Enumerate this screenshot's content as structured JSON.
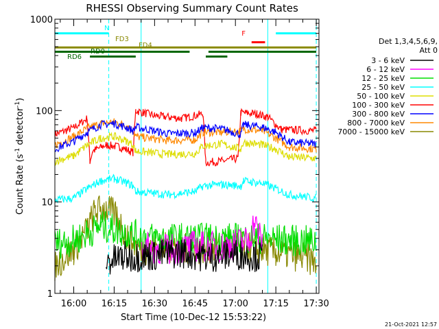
{
  "chart_data": {
    "type": "line",
    "title": "RHESSI Observing Summary Count Rates",
    "xlabel": "Start Time (10-Dec-12 15:53:22)",
    "ylabel": "Count Rate (s",
    "ylabel_sup": "-1",
    "ylabel_mid": " detector",
    "ylabel_end": ")",
    "yscale": "log",
    "ylim": [
      1,
      1000
    ],
    "xlim": [
      "15:53",
      "17:31"
    ],
    "x_ticks": [
      "16:00",
      "16:15",
      "16:30",
      "16:45",
      "17:00",
      "17:15",
      "17:30"
    ],
    "y_ticks": [
      "1",
      "10",
      "100",
      "1000"
    ],
    "footer_date": "21-Oct-2021 12:57",
    "legend": {
      "header": [
        "Det 1,3,4,5,6,9,",
        "Att 0"
      ],
      "placement": "right",
      "entries": [
        {
          "label": "3 - 6 keV",
          "color": "#000000"
        },
        {
          "label": "6 - 12 keV",
          "color": "#ff00ff"
        },
        {
          "label": "12 - 25 keV",
          "color": "#00dd00"
        },
        {
          "label": "25 - 50 keV",
          "color": "#00ffff"
        },
        {
          "label": "50 - 100 keV",
          "color": "#dddd00"
        },
        {
          "label": "100 - 300 keV",
          "color": "#ff0000"
        },
        {
          "label": "300 - 800 keV",
          "color": "#0000ff"
        },
        {
          "label": "800 - 7000 keV",
          "color": "#ff8800"
        },
        {
          "label": "7000 - 15000 keV",
          "color": "#888800"
        }
      ]
    },
    "series": [
      {
        "name": "100 - 300 keV",
        "color": "#ff0000",
        "points": [
          [
            "15:53",
            55
          ],
          [
            "16:00",
            65
          ],
          [
            "16:05",
            82
          ],
          [
            "16:06",
            28
          ],
          [
            "16:07",
            36
          ],
          [
            "16:12",
            42
          ],
          [
            "16:17",
            40
          ],
          [
            "16:22",
            35
          ],
          [
            "16:23",
            100
          ],
          [
            "16:30",
            88
          ],
          [
            "16:40",
            82
          ],
          [
            "16:48",
            92
          ],
          [
            "16:49",
            27
          ],
          [
            "16:55",
            28
          ],
          [
            "17:01",
            30
          ],
          [
            "17:02",
            95
          ],
          [
            "17:08",
            92
          ],
          [
            "17:12",
            85
          ],
          [
            "17:17",
            62
          ],
          [
            "17:30",
            60
          ]
        ]
      },
      {
        "name": "800 - 7000 keV",
        "color": "#ff8800",
        "points": [
          [
            "15:53",
            42
          ],
          [
            "16:00",
            52
          ],
          [
            "16:05",
            64
          ],
          [
            "16:10",
            72
          ],
          [
            "16:15",
            75
          ],
          [
            "16:20",
            68
          ],
          [
            "16:22",
            60
          ],
          [
            "16:23",
            52
          ],
          [
            "16:35",
            47
          ],
          [
            "16:45",
            48
          ],
          [
            "16:48",
            58
          ],
          [
            "16:55",
            58
          ],
          [
            "17:02",
            60
          ],
          [
            "17:03",
            63
          ],
          [
            "17:10",
            60
          ],
          [
            "17:15",
            50
          ],
          [
            "17:20",
            40
          ],
          [
            "17:30",
            38
          ]
        ]
      },
      {
        "name": "300 - 800 keV",
        "color": "#0000ff",
        "points": [
          [
            "15:53",
            38
          ],
          [
            "16:00",
            46
          ],
          [
            "16:05",
            58
          ],
          [
            "16:10",
            70
          ],
          [
            "16:15",
            72
          ],
          [
            "16:20",
            65
          ],
          [
            "16:22",
            60
          ],
          [
            "16:23",
            66
          ],
          [
            "16:35",
            56
          ],
          [
            "16:45",
            57
          ],
          [
            "16:48",
            65
          ],
          [
            "16:55",
            63
          ],
          [
            "17:02",
            55
          ],
          [
            "17:03",
            70
          ],
          [
            "17:10",
            66
          ],
          [
            "17:15",
            58
          ],
          [
            "17:20",
            45
          ],
          [
            "17:30",
            43
          ]
        ]
      },
      {
        "name": "50 - 100 keV",
        "color": "#dddd00",
        "points": [
          [
            "15:53",
            28
          ],
          [
            "16:00",
            32
          ],
          [
            "16:05",
            42
          ],
          [
            "16:10",
            50
          ],
          [
            "16:15",
            52
          ],
          [
            "16:20",
            46
          ],
          [
            "16:22",
            42
          ],
          [
            "16:23",
            36
          ],
          [
            "16:35",
            33
          ],
          [
            "16:45",
            34
          ],
          [
            "16:48",
            41
          ],
          [
            "16:55",
            43
          ],
          [
            "17:02",
            38
          ],
          [
            "17:03",
            45
          ],
          [
            "17:10",
            42
          ],
          [
            "17:15",
            38
          ],
          [
            "17:20",
            31
          ],
          [
            "17:30",
            30
          ]
        ]
      },
      {
        "name": "25 - 50 keV",
        "color": "#00ffff",
        "points": [
          [
            "15:53",
            10.5
          ],
          [
            "16:00",
            11
          ],
          [
            "16:05",
            14
          ],
          [
            "16:10",
            17
          ],
          [
            "16:15",
            18
          ],
          [
            "16:20",
            16
          ],
          [
            "16:22",
            15
          ],
          [
            "16:23",
            13
          ],
          [
            "16:35",
            12
          ],
          [
            "16:45",
            13
          ],
          [
            "16:48",
            15
          ],
          [
            "16:55",
            15.5
          ],
          [
            "17:02",
            15
          ],
          [
            "17:03",
            17
          ],
          [
            "17:10",
            16
          ],
          [
            "17:15",
            14
          ],
          [
            "17:20",
            12
          ],
          [
            "17:30",
            11
          ]
        ]
      },
      {
        "name": "7000 - 15000 keV",
        "color": "#888800",
        "points": [
          [
            "15:53",
            2
          ],
          [
            "16:00",
            3
          ],
          [
            "16:05",
            5
          ],
          [
            "16:08",
            8
          ],
          [
            "16:12",
            8.5
          ],
          [
            "16:16",
            7
          ],
          [
            "16:20",
            4
          ],
          [
            "16:25",
            3
          ],
          [
            "16:35",
            3.2
          ],
          [
            "16:45",
            3
          ],
          [
            "16:55",
            3.3
          ],
          [
            "17:05",
            3.2
          ],
          [
            "17:15",
            2.8
          ],
          [
            "17:25",
            2.5
          ],
          [
            "17:30",
            2.2
          ]
        ]
      },
      {
        "name": "12 - 25 keV",
        "color": "#00dd00",
        "points": [
          [
            "15:53",
            3.5
          ],
          [
            "16:00",
            3.8
          ],
          [
            "16:05",
            4.5
          ],
          [
            "16:10",
            5.5
          ],
          [
            "16:15",
            5
          ],
          [
            "16:20",
            4.5
          ],
          [
            "16:30",
            4
          ],
          [
            "16:40",
            4
          ],
          [
            "16:50",
            4
          ],
          [
            "17:00",
            4
          ],
          [
            "17:10",
            4
          ],
          [
            "17:20",
            3.8
          ],
          [
            "17:30",
            3.7
          ]
        ]
      },
      {
        "name": "6 - 12 keV",
        "color": "#ff00ff",
        "points": [
          [
            "16:25",
            3.2
          ],
          [
            "16:35",
            3
          ],
          [
            "16:45",
            3.3
          ],
          [
            "16:55",
            3.2
          ],
          [
            "17:05",
            3.8
          ],
          [
            "17:07",
            6
          ],
          [
            "17:10",
            3.5
          ]
        ]
      },
      {
        "name": "3 - 6 keV",
        "color": "#000000",
        "points": [
          [
            "16:12",
            2.2
          ],
          [
            "16:18",
            2.5
          ],
          [
            "16:30",
            2.6
          ],
          [
            "16:40",
            2.8
          ],
          [
            "16:50",
            2.5
          ],
          [
            "17:00",
            2.7
          ],
          [
            "17:10",
            2.5
          ]
        ]
      }
    ],
    "state_bars": [
      {
        "label": "N",
        "color": "#00ffff",
        "value": 700,
        "segments": [
          [
            "15:53",
            "16:13"
          ],
          [
            "17:15",
            "17:30"
          ]
        ]
      },
      {
        "label": "F",
        "color": "#ff0000",
        "value": 560,
        "segments": [
          [
            "17:06",
            "17:11"
          ]
        ]
      },
      {
        "label": "FD3",
        "color": "#888800",
        "value": 490,
        "segments": [
          [
            "15:53",
            "17:30"
          ]
        ]
      },
      {
        "label": "FD4",
        "color": "#006600",
        "value": 440,
        "segments": [
          [
            "15:53",
            "16:43"
          ],
          [
            "16:50",
            "17:30"
          ]
        ]
      },
      {
        "label": "RD0",
        "color": "#006600",
        "value": 390,
        "segments": [
          [
            "16:06",
            "16:23"
          ],
          [
            "16:49",
            "16:57"
          ]
        ]
      }
    ],
    "vlines": [
      {
        "time": "16:13",
        "color": "#00ffff",
        "style": "dashed"
      },
      {
        "time": "16:25",
        "color": "#00ffff",
        "style": "solid"
      },
      {
        "time": "17:12",
        "color": "#00ffff",
        "style": "solid"
      },
      {
        "time": "17:30",
        "color": "#00ffff",
        "style": "dashed"
      }
    ],
    "bar_labels": {
      "N": "N",
      "F": "F",
      "FD3": "FD3",
      "FD4": "FD4",
      "RD0": "RD0",
      "RD6": "RD6"
    }
  }
}
